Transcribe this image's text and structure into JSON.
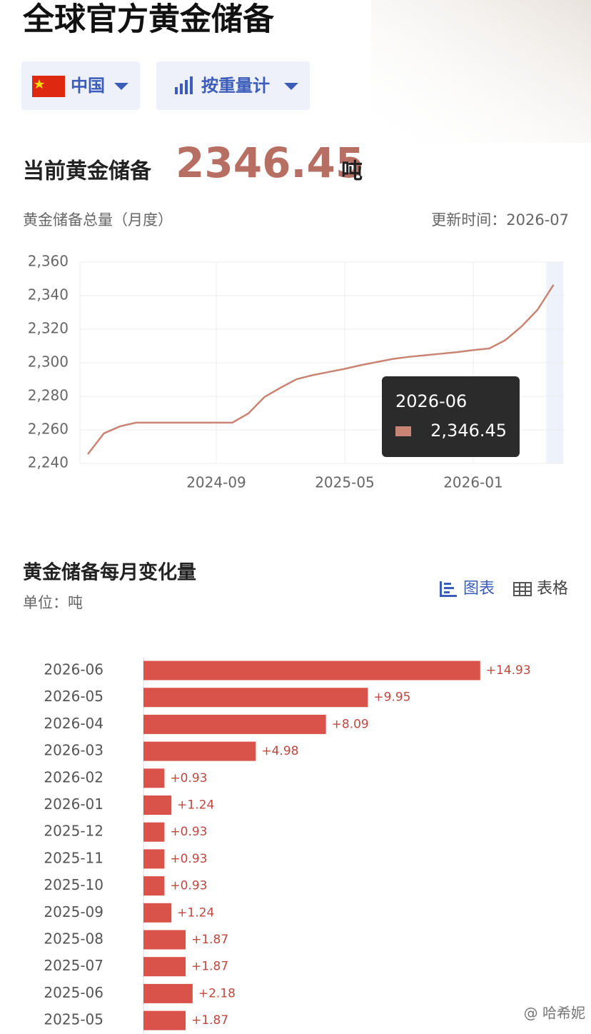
{
  "header": {
    "title": "全球官方黄金储备",
    "country": "中国",
    "mode": "按重量计"
  },
  "current": {
    "label": "当前黄金储备",
    "value": 2346.45,
    "unit": "吨"
  },
  "chart_data": [
    {
      "type": "line",
      "title": "黄金储备总量（月度）",
      "updated": "更新时间：2026-07",
      "x": [
        "2024-01",
        "2024-02",
        "2024-03",
        "2024-04",
        "2024-05",
        "2024-06",
        "2024-07",
        "2024-08",
        "2024-09",
        "2024-10",
        "2024-11",
        "2024-12",
        "2025-01",
        "2025-02",
        "2025-03",
        "2025-04",
        "2025-05",
        "2025-06",
        "2025-07",
        "2025-08",
        "2025-09",
        "2025-10",
        "2025-11",
        "2025-12",
        "2026-01",
        "2026-02",
        "2026-03",
        "2026-04",
        "2026-05",
        "2026-06"
      ],
      "values": [
        2245.5,
        2257.9,
        2262.1,
        2264.3,
        2264.3,
        2264.3,
        2264.3,
        2264.3,
        2264.3,
        2264.3,
        2269.8,
        2279.6,
        2285.1,
        2290.2,
        2292.6,
        2294.5,
        2296.38,
        2298.56,
        2300.43,
        2302.3,
        2303.54,
        2304.47,
        2305.4,
        2306.33,
        2307.57,
        2308.5,
        2313.48,
        2321.57,
        2331.52,
        2346.45
      ],
      "color": "#c98473",
      "ylim": [
        2240,
        2360
      ],
      "yticks": [
        {
          "value": 2240,
          "label": "2,240"
        },
        {
          "value": 2260,
          "label": "2,260"
        },
        {
          "value": 2280,
          "label": "2,280"
        },
        {
          "value": 2300,
          "label": "2,300"
        },
        {
          "value": 2320,
          "label": "2,320"
        },
        {
          "value": 2340,
          "label": "2,340"
        },
        {
          "value": 2360,
          "label": "2,360"
        }
      ],
      "xticks": [
        "2024-09",
        "2025-05",
        "2026-01"
      ],
      "grid": true,
      "tooltip": {
        "x": "2026-06",
        "value": "2,346.45"
      }
    },
    {
      "type": "bar",
      "orientation": "horizontal",
      "title": "黄金储备每月变化量",
      "unit": "单位：吨",
      "view_options": [
        "图表",
        "表格"
      ],
      "categories": [
        "2026-06",
        "2026-05",
        "2026-04",
        "2026-03",
        "2026-02",
        "2026-01",
        "2025-12",
        "2025-11",
        "2025-10",
        "2025-09",
        "2025-08",
        "2025-07",
        "2025-06",
        "2025-05"
      ],
      "values": [
        14.93,
        9.95,
        8.09,
        4.98,
        0.93,
        1.24,
        0.93,
        0.93,
        0.93,
        1.24,
        1.87,
        1.87,
        2.18,
        1.87
      ],
      "value_labels": [
        "+14.93",
        "+9.95",
        "+8.09",
        "+4.98",
        "+0.93",
        "+1.24",
        "+0.93",
        "+0.93",
        "+0.93",
        "+1.24",
        "+1.87",
        "+1.87",
        "+2.18",
        "+1.87"
      ],
      "color": "#d9534a"
    }
  ],
  "watermark": "@ 哈希妮"
}
